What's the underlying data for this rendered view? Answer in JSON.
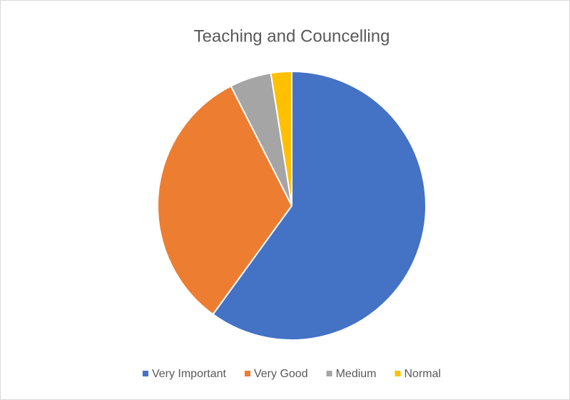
{
  "chart_data": {
    "type": "pie",
    "title": "Teaching and Councelling",
    "categories": [
      "Very Important",
      "Very Good",
      "Medium",
      "Normal"
    ],
    "values": [
      60,
      32.5,
      5,
      2.5
    ],
    "colors": [
      "#4472c4",
      "#ed7d31",
      "#a5a5a5",
      "#ffc000"
    ],
    "legend": "bottom"
  }
}
